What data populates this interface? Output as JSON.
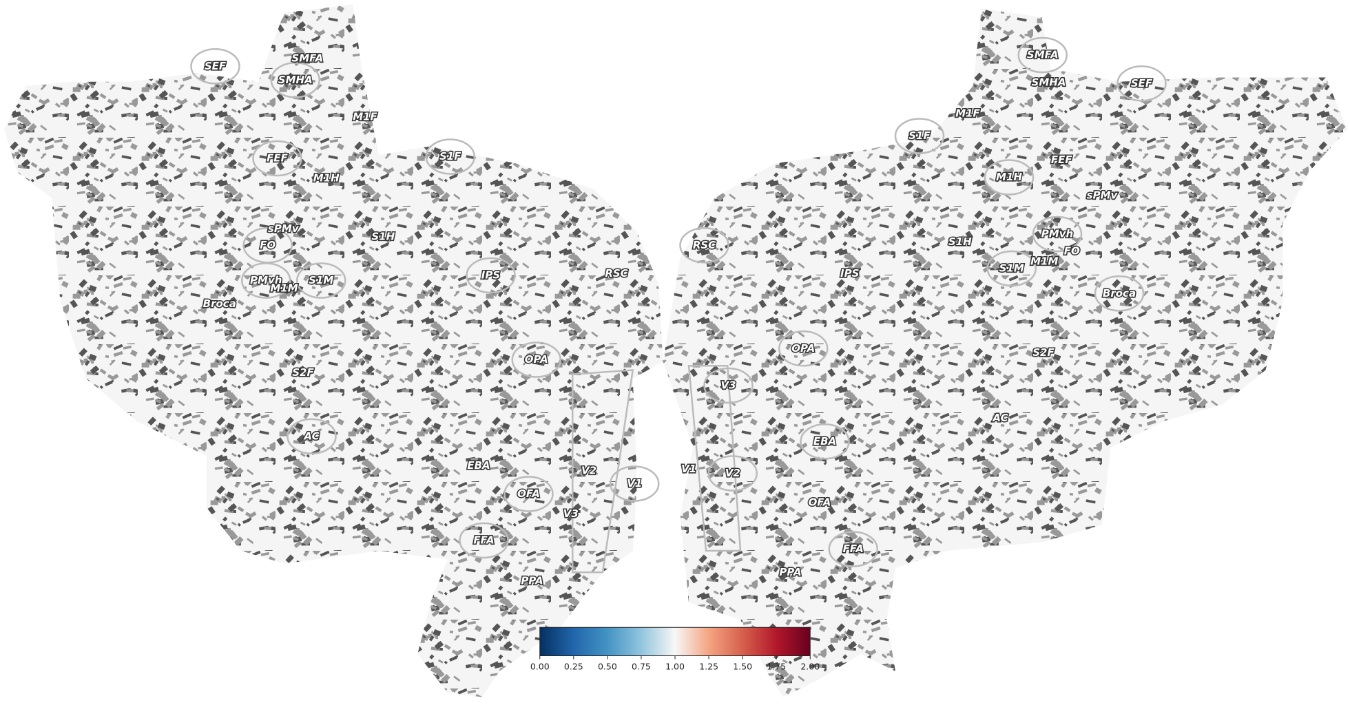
{
  "rois": {
    "left": [
      "SEF",
      "SMFA",
      "SMHA",
      "M1F",
      "FEF",
      "M1H",
      "S1F",
      "sPMv",
      "FO",
      "S1H",
      "PMvh",
      "M1M",
      "S1M",
      "Broca",
      "IPS",
      "RSC",
      "OPA",
      "S2F",
      "AC",
      "V2",
      "V1",
      "EBA",
      "OFA",
      "V3",
      "FFA",
      "PPA"
    ],
    "right": [
      "SMFA",
      "SMHA",
      "SEF",
      "M1F",
      "S1F",
      "FEF",
      "M1H",
      "sPMv",
      "RSC",
      "S1H",
      "PMvh",
      "FO",
      "S1M",
      "M1M",
      "Broca",
      "IPS",
      "OPA",
      "S2F",
      "V3",
      "AC",
      "EBA",
      "V1",
      "V2",
      "OFA",
      "FFA",
      "PPA"
    ]
  },
  "colorbar": {
    "lim": [
      0,
      2
    ],
    "ticks": [
      {
        "value": 0,
        "label": "0.00"
      },
      {
        "value": 0.25,
        "label": "0.25"
      },
      {
        "value": 0.5,
        "label": "0.50"
      },
      {
        "value": 0.75,
        "label": "0.75"
      },
      {
        "value": 1,
        "label": "1.00"
      },
      {
        "value": 1.25,
        "label": "1.25"
      },
      {
        "value": 1.5,
        "label": "1.50"
      },
      {
        "value": 1.75,
        "label": "1.75"
      },
      {
        "value": 2,
        "label": "2.00"
      }
    ]
  }
}
